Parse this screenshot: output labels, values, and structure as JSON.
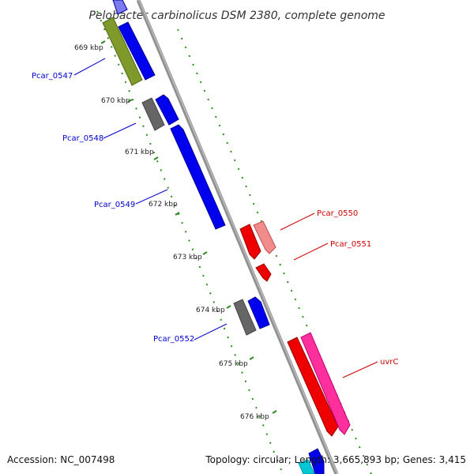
{
  "title": "Pelobacter carbinolicus DSM 2380, complete genome",
  "accession": "Accession: NC_007498",
  "summary": "Topology: circular; Length: 3,665,893 bp; Genes: 3,415",
  "colors": {
    "backbone": "#8c8c8c",
    "tick": "#2e8b20",
    "forward_label": "#0000cc",
    "reverse_label": "#cc0000"
  },
  "ticks": [
    "669 kbp",
    "670 kbp",
    "671 kbp",
    "672 kbp",
    "673 kbp",
    "674 kbp",
    "675 kbp",
    "676 kbp"
  ],
  "genes": [
    {
      "name": "Pcar_0547",
      "strand": "forward",
      "color": "#0000ee"
    },
    {
      "name": "Pcar_0548",
      "strand": "forward",
      "color": "#0000ee"
    },
    {
      "name": "Pcar_0549",
      "strand": "forward",
      "color": "#0000ee"
    },
    {
      "name": "Pcar_0552",
      "strand": "forward",
      "color": "#0000ee"
    },
    {
      "name": "Pcar_0550",
      "strand": "reverse",
      "color": "#ee0000"
    },
    {
      "name": "Pcar_0551",
      "strand": "reverse",
      "color": "#ee0000"
    },
    {
      "name": "uvrC",
      "strand": "reverse",
      "color": "#ee0000"
    }
  ]
}
